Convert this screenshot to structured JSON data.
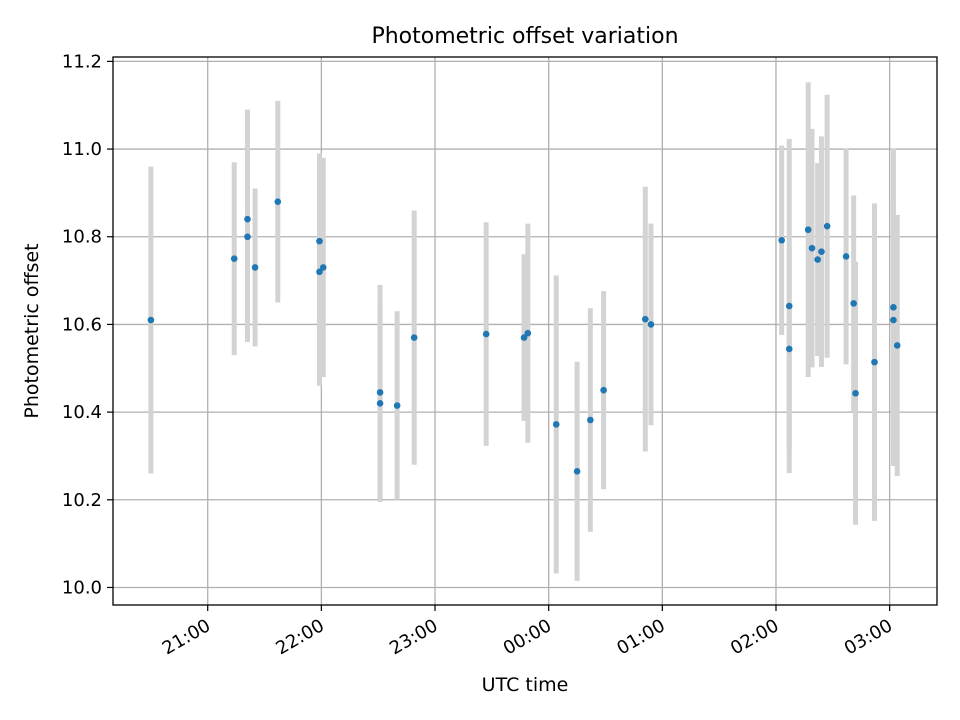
{
  "chart_data": {
    "type": "scatter",
    "title": "Photometric offset variation",
    "xlabel": "UTC time",
    "ylabel": "Photometric offset",
    "x_axis_type": "time",
    "xlim": [
      "20:10",
      "03:25"
    ],
    "ylim": [
      9.96,
      11.21
    ],
    "x_ticks": [
      "21:00",
      "22:00",
      "23:00",
      "00:00",
      "01:00",
      "02:00",
      "03:00"
    ],
    "y_ticks": [
      "10.0",
      "10.2",
      "10.4",
      "10.6",
      "10.8",
      "11.0",
      "11.2"
    ],
    "grid": true,
    "point_color": "#1f77b4",
    "errorbar_color": "#d3d3d3",
    "points": [
      {
        "x": "20:30",
        "y": 10.61,
        "yerr": 0.35
      },
      {
        "x": "21:14",
        "y": 10.75,
        "yerr": 0.22
      },
      {
        "x": "21:21",
        "y": 10.84,
        "yerr": 0.25
      },
      {
        "x": "21:21",
        "y": 10.8,
        "yerr": 0.24
      },
      {
        "x": "21:25",
        "y": 10.73,
        "yerr": 0.18
      },
      {
        "x": "21:37",
        "y": 10.88,
        "yerr": 0.23
      },
      {
        "x": "21:59",
        "y": 10.79,
        "yerr": 0.2
      },
      {
        "x": "21:59",
        "y": 10.72,
        "yerr": 0.26
      },
      {
        "x": "22:01",
        "y": 10.73,
        "yerr": 0.25
      },
      {
        "x": "22:31",
        "y": 10.445,
        "yerr": 0.245
      },
      {
        "x": "22:31",
        "y": 10.42,
        "yerr": 0.225
      },
      {
        "x": "22:40",
        "y": 10.415,
        "yerr": 0.215
      },
      {
        "x": "22:49",
        "y": 10.57,
        "yerr": 0.29
      },
      {
        "x": "23:27",
        "y": 10.578,
        "yerr": 0.255
      },
      {
        "x": "23:47",
        "y": 10.57,
        "yerr": 0.19
      },
      {
        "x": "23:49",
        "y": 10.58,
        "yerr": 0.25
      },
      {
        "x": "00:04",
        "y": 10.372,
        "yerr": 0.34
      },
      {
        "x": "00:15",
        "y": 10.265,
        "yerr": 0.25
      },
      {
        "x": "00:22",
        "y": 10.382,
        "yerr": 0.255
      },
      {
        "x": "00:29",
        "y": 10.45,
        "yerr": 0.226
      },
      {
        "x": "00:51",
        "y": 10.612,
        "yerr": 0.302
      },
      {
        "x": "00:54",
        "y": 10.6,
        "yerr": 0.23
      },
      {
        "x": "02:03",
        "y": 10.792,
        "yerr": 0.216
      },
      {
        "x": "02:07",
        "y": 10.642,
        "yerr": 0.381
      },
      {
        "x": "02:07",
        "y": 10.544,
        "yerr": 0.23
      },
      {
        "x": "02:17",
        "y": 10.816,
        "yerr": 0.336
      },
      {
        "x": "02:19",
        "y": 10.774,
        "yerr": 0.272
      },
      {
        "x": "02:22",
        "y": 10.748,
        "yerr": 0.22
      },
      {
        "x": "02:24",
        "y": 10.766,
        "yerr": 0.263
      },
      {
        "x": "02:27",
        "y": 10.824,
        "yerr": 0.3
      },
      {
        "x": "02:37",
        "y": 10.755,
        "yerr": 0.246
      },
      {
        "x": "02:41",
        "y": 10.648,
        "yerr": 0.246
      },
      {
        "x": "02:42",
        "y": 10.443,
        "yerr": 0.3
      },
      {
        "x": "02:52",
        "y": 10.514,
        "yerr": 0.362
      },
      {
        "x": "03:02",
        "y": 10.639,
        "yerr": 0.362
      },
      {
        "x": "03:02",
        "y": 10.61,
        "yerr": 0.268
      },
      {
        "x": "03:04",
        "y": 10.552,
        "yerr": 0.298
      }
    ]
  }
}
